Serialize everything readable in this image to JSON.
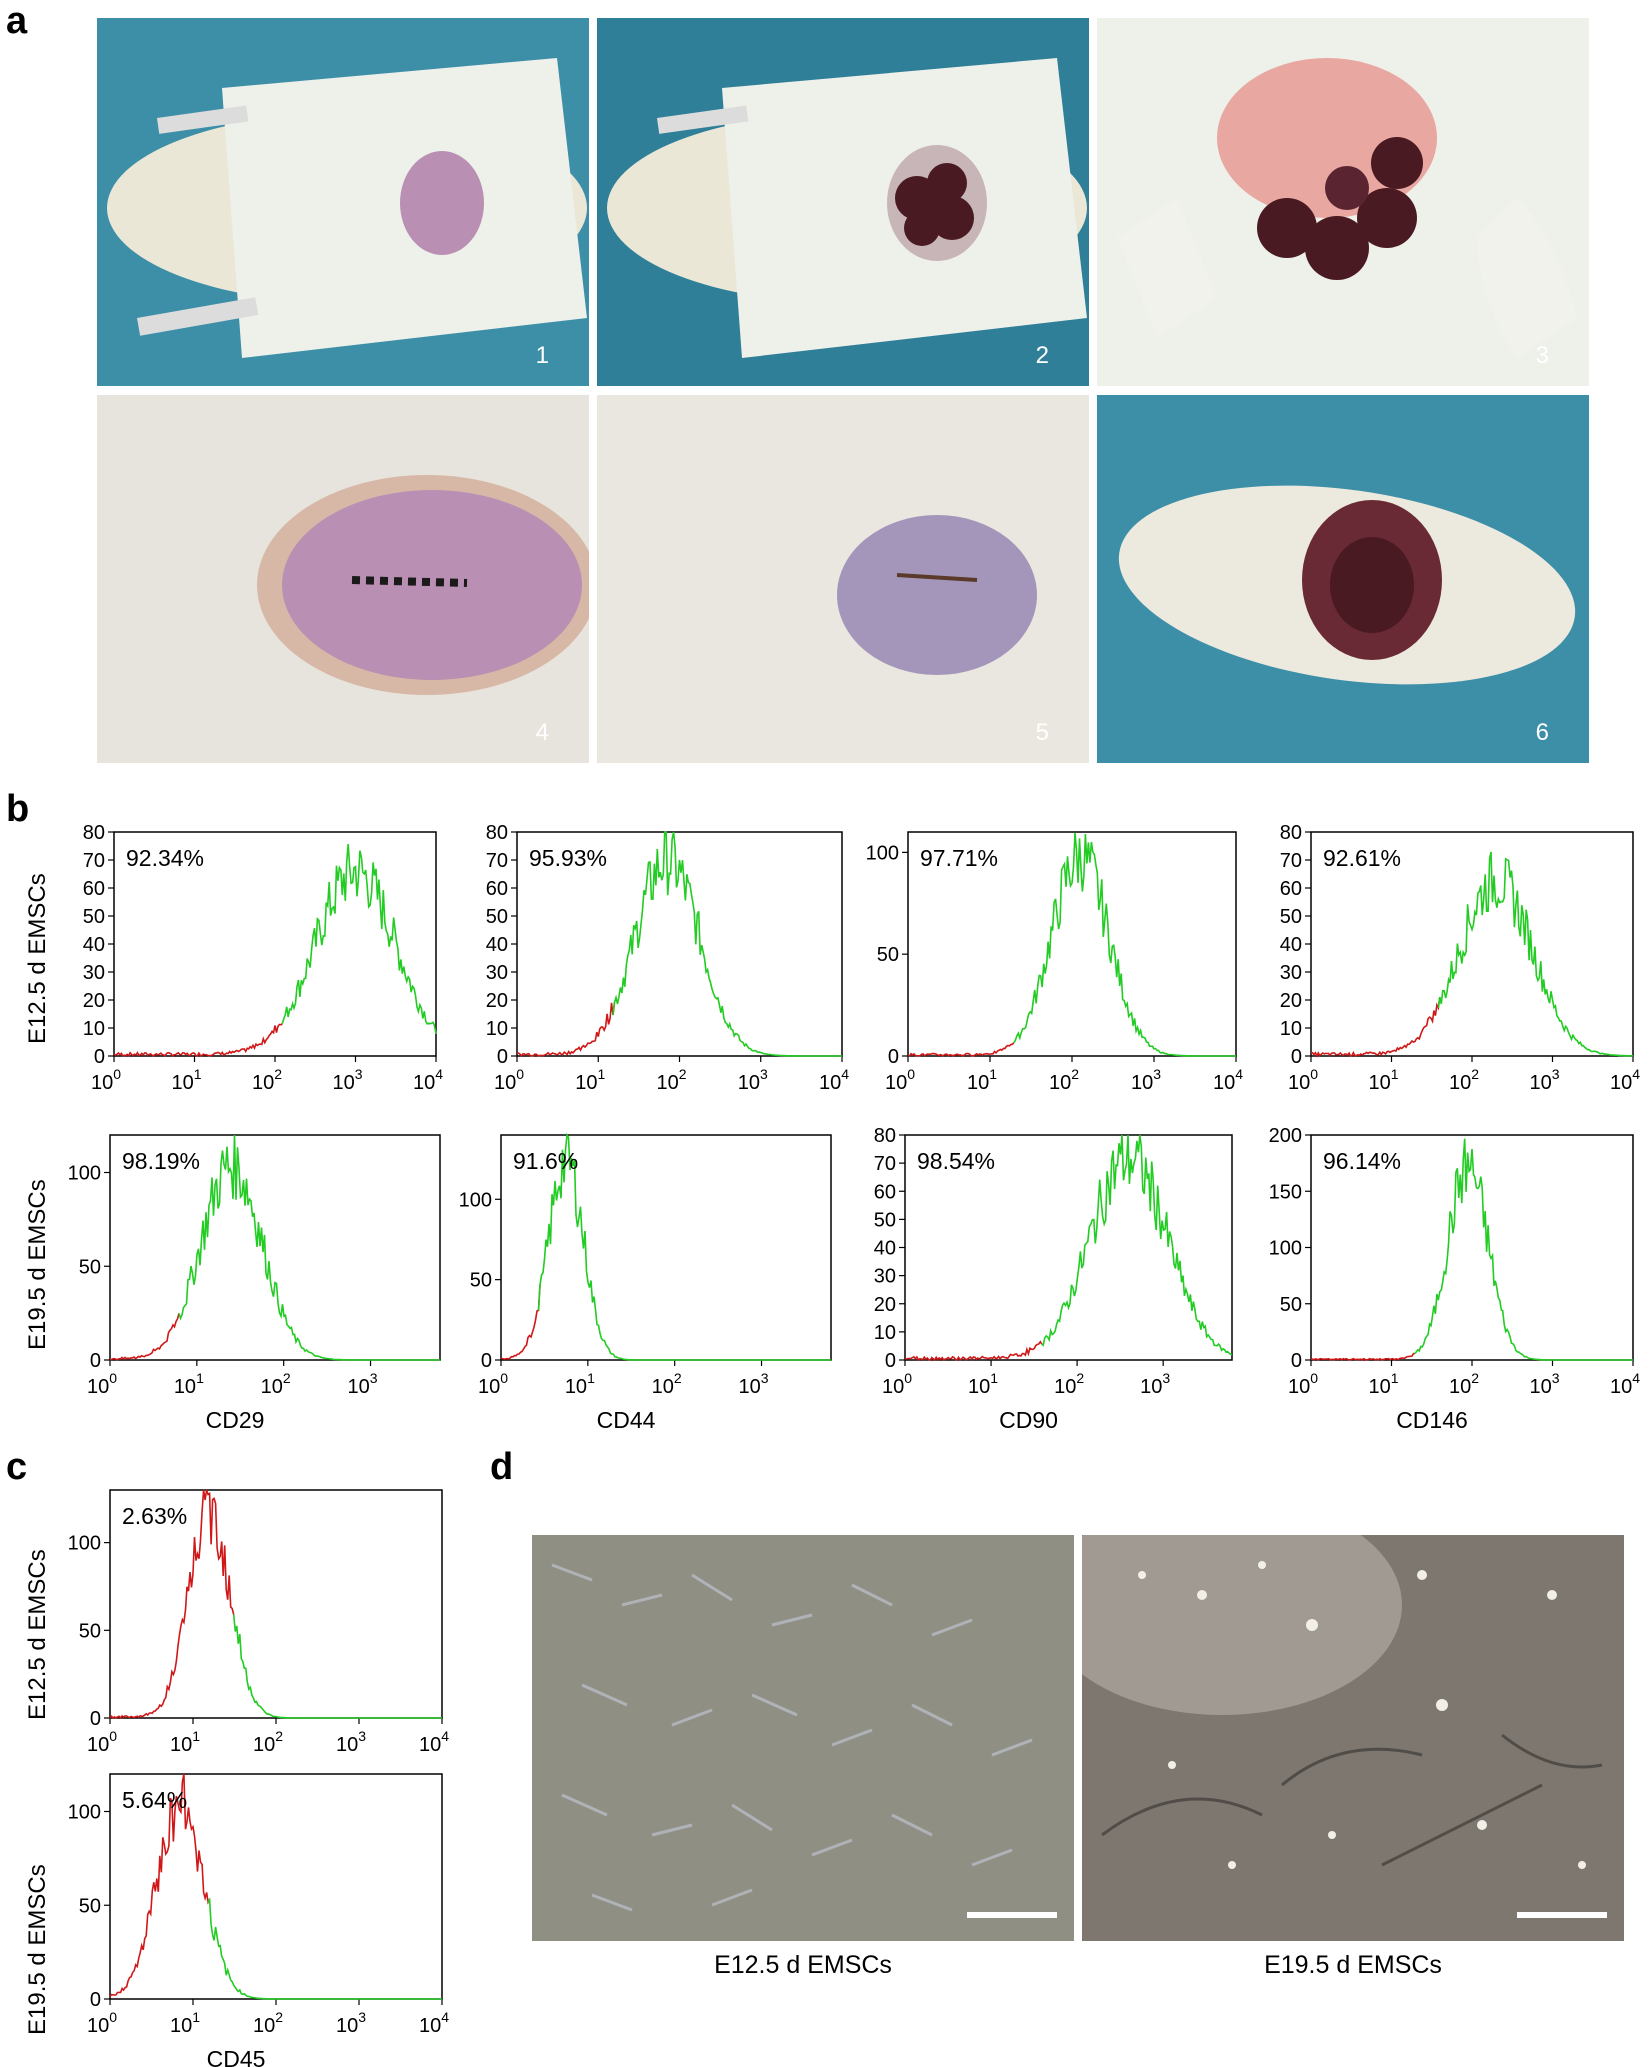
{
  "panels": {
    "a": "a",
    "b": "b",
    "c": "c",
    "d": "d"
  },
  "photos": {
    "labels": [
      "1",
      "2",
      "3",
      "4",
      "5",
      "6"
    ],
    "colors": {
      "drape": "#3d8fa8",
      "gauze": "#eef0ea",
      "skin": "#b98fb4",
      "fur": "#e6e4dc",
      "uterus": "#4a1a22"
    }
  },
  "row_labels": {
    "b_top": "E12.5 d EMSCs",
    "b_bottom": "E19.5 d EMSCs",
    "c_top": "E12.5 d EMSCs",
    "c_bottom": "E19.5 d EMSCs"
  },
  "chart_data": [
    {
      "id": "b-E12.5-CD29",
      "type": "histogram",
      "percent": "92.34%",
      "xlabel": "",
      "ylim": [
        0,
        80
      ],
      "yticks": [
        "0",
        "10",
        "20",
        "30",
        "40",
        "50",
        "60",
        "70",
        "80"
      ],
      "xticks": [
        "0",
        "1",
        "2",
        "3",
        "4"
      ],
      "peak_log": 3.0,
      "peak": 66,
      "spread": 0.5,
      "gate_log": 2.1
    },
    {
      "id": "b-E12.5-CD44",
      "type": "histogram",
      "percent": "95.93%",
      "xlabel": "",
      "ylim": [
        0,
        80
      ],
      "yticks": [
        "0",
        "10",
        "20",
        "30",
        "40",
        "50",
        "60",
        "70",
        "80"
      ],
      "xticks": [
        "0",
        "1",
        "2",
        "3",
        "4"
      ],
      "peak_log": 1.85,
      "peak": 70,
      "spread": 0.4,
      "gate_log": 1.2
    },
    {
      "id": "b-E12.5-CD90",
      "type": "histogram",
      "percent": "97.71%",
      "xlabel": "",
      "ylim": [
        0,
        110
      ],
      "yticks": [
        "0",
        "50",
        "100"
      ],
      "xticks": [
        "0",
        "1",
        "2",
        "3",
        "4"
      ],
      "peak_log": 2.1,
      "peak": 98,
      "spread": 0.35,
      "gate_log": 1.3
    },
    {
      "id": "b-E12.5-CD146",
      "type": "histogram",
      "percent": "92.61%",
      "xlabel": "",
      "ylim": [
        0,
        80
      ],
      "yticks": [
        "0",
        "10",
        "20",
        "30",
        "40",
        "50",
        "60",
        "70",
        "80"
      ],
      "xticks": [
        "0",
        "1",
        "2",
        "3",
        "4"
      ],
      "peak_log": 2.3,
      "peak": 63,
      "spread": 0.45,
      "gate_log": 1.6
    },
    {
      "id": "b-E19.5-CD29",
      "type": "histogram",
      "percent": "98.19%",
      "xlabel": "CD29",
      "ylim": [
        0,
        120
      ],
      "yticks": [
        "0",
        "50",
        "100"
      ],
      "xticks": [
        "0",
        "1",
        "2",
        "3"
      ],
      "peak_log": 1.4,
      "peak": 104,
      "spread": 0.35,
      "gate_log": 0.8
    },
    {
      "id": "b-E19.5-CD44",
      "type": "histogram",
      "percent": "91.6%",
      "xlabel": "CD44",
      "ylim": [
        0,
        140
      ],
      "yticks": [
        "0",
        "50",
        "100"
      ],
      "xticks": [
        "0",
        "1",
        "2",
        "3"
      ],
      "peak_log": 0.75,
      "peak": 125,
      "spread": 0.2,
      "gate_log": 0.45
    },
    {
      "id": "b-E19.5-CD90",
      "type": "histogram",
      "percent": "98.54%",
      "xlabel": "CD90",
      "ylim": [
        0,
        80
      ],
      "yticks": [
        "0",
        "10",
        "20",
        "30",
        "40",
        "50",
        "60",
        "70",
        "80"
      ],
      "xticks": [
        "0",
        "1",
        "2",
        "3"
      ],
      "peak_log": 2.6,
      "peak": 72,
      "spread": 0.45,
      "gate_log": 1.6
    },
    {
      "id": "b-E19.5-CD146",
      "type": "histogram",
      "percent": "96.14%",
      "xlabel": "CD146",
      "ylim": [
        0,
        200
      ],
      "yticks": [
        "0",
        "50",
        "100",
        "150",
        "200"
      ],
      "xticks": [
        "0",
        "1",
        "2",
        "3",
        "4"
      ],
      "peak_log": 1.95,
      "peak": 172,
      "spread": 0.25,
      "gate_log": 1.3
    },
    {
      "id": "c-E12.5-CD45",
      "type": "histogram",
      "percent": "2.63%",
      "xlabel": "",
      "ylim": [
        0,
        130
      ],
      "yticks": [
        "0",
        "50",
        "100"
      ],
      "xticks": [
        "0",
        "1",
        "2",
        "3",
        "4"
      ],
      "peak_log": 1.2,
      "peak": 118,
      "spread": 0.25,
      "gate_log": 1.5
    },
    {
      "id": "c-E19.5-CD45",
      "type": "histogram",
      "percent": "5.64%",
      "xlabel": "CD45",
      "ylim": [
        0,
        120
      ],
      "yticks": [
        "0",
        "50",
        "100"
      ],
      "xticks": [
        "0",
        "1",
        "2",
        "3",
        "4"
      ],
      "peak_log": 0.85,
      "peak": 105,
      "spread": 0.28,
      "gate_log": 1.2
    }
  ],
  "micrographs": {
    "left_caption": "E12.5 d EMSCs",
    "right_caption": "E19.5 d EMSCs"
  }
}
